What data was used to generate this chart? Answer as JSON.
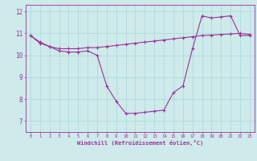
{
  "windchill": [
    10.9,
    10.6,
    10.4,
    10.2,
    10.15,
    10.15,
    10.2,
    10.0,
    8.6,
    7.9,
    7.35,
    7.35,
    7.4,
    7.45,
    7.5,
    8.3,
    8.6,
    10.3,
    11.8,
    11.7,
    11.75,
    11.8,
    10.9,
    10.9
  ],
  "temperature": [
    10.9,
    10.55,
    10.4,
    10.3,
    10.3,
    10.3,
    10.35,
    10.35,
    10.4,
    10.45,
    10.5,
    10.55,
    10.6,
    10.65,
    10.7,
    10.75,
    10.8,
    10.85,
    10.9,
    10.92,
    10.95,
    10.97,
    11.0,
    10.95
  ],
  "x": [
    0,
    1,
    2,
    3,
    4,
    5,
    6,
    7,
    8,
    9,
    10,
    11,
    12,
    13,
    14,
    15,
    16,
    17,
    18,
    19,
    20,
    21,
    22,
    23
  ],
  "xlabel": "Windchill (Refroidissement éolien,°C)",
  "ylim": [
    6.5,
    12.3
  ],
  "xlim": [
    -0.5,
    23.5
  ],
  "xticks": [
    0,
    1,
    2,
    3,
    4,
    5,
    6,
    7,
    8,
    9,
    10,
    11,
    12,
    13,
    14,
    15,
    16,
    17,
    18,
    19,
    20,
    21,
    22,
    23
  ],
  "yticks": [
    7,
    8,
    9,
    10,
    11,
    12
  ],
  "bg_color": "#ceeaea",
  "line_color": "#993399",
  "grid_color": "#a8d8d8",
  "axis_color": "#993399",
  "tick_label_color": "#993399",
  "xlabel_color": "#993399"
}
